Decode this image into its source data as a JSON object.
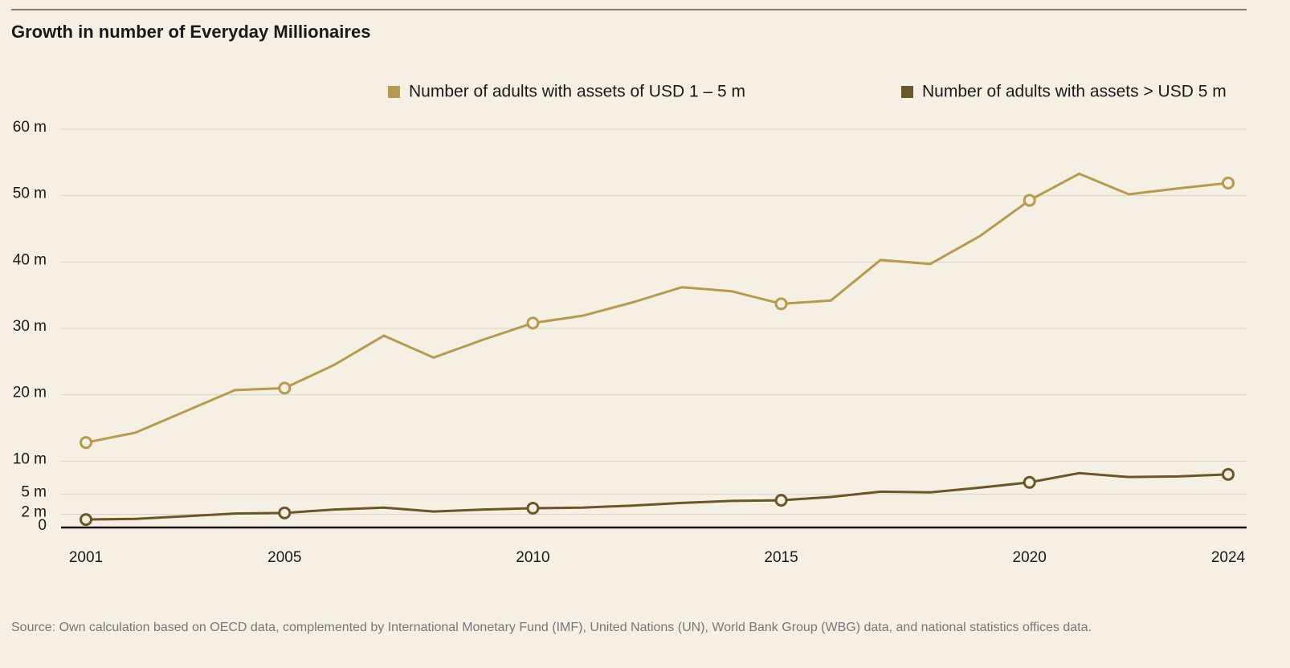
{
  "chart_data": {
    "type": "line",
    "title": "Growth in number of Everyday Millionaires",
    "x": [
      2001,
      2002,
      2003,
      2004,
      2005,
      2006,
      2007,
      2008,
      2009,
      2010,
      2011,
      2012,
      2013,
      2014,
      2015,
      2016,
      2017,
      2018,
      2019,
      2020,
      2021,
      2022,
      2023,
      2024
    ],
    "xlim": [
      2001,
      2024
    ],
    "xticks": [
      2001,
      2005,
      2010,
      2015,
      2020,
      2024
    ],
    "series": [
      {
        "name": "Number of adults with assets of USD 1 – 5 m",
        "color": "#b89a4f",
        "values": [
          12.8,
          14.3,
          17.5,
          20.7,
          21.0,
          24.5,
          28.9,
          25.6,
          28.3,
          30.8,
          31.9,
          33.9,
          36.2,
          35.6,
          33.7,
          34.2,
          40.3,
          39.7,
          43.9,
          49.3,
          53.3,
          50.2,
          51.1,
          51.9
        ]
      },
      {
        "name": "Number of adults with assets > USD 5 m",
        "color": "#6b5628",
        "values": [
          1.2,
          1.3,
          1.7,
          2.1,
          2.2,
          2.7,
          3.0,
          2.4,
          2.7,
          2.9,
          3.0,
          3.3,
          3.7,
          4.0,
          4.1,
          4.6,
          5.4,
          5.3,
          6.0,
          6.8,
          8.2,
          7.6,
          7.7,
          8.0
        ]
      }
    ],
    "ylim": [
      0,
      60
    ],
    "yticks": [
      0,
      {
        "value": 2,
        "label": "2 m"
      },
      {
        "value": 5,
        "label": "5 m"
      },
      {
        "value": 10,
        "label": "10 m"
      },
      {
        "value": 20,
        "label": "20 m"
      },
      {
        "value": 30,
        "label": "30 m"
      },
      {
        "value": 40,
        "label": "40 m"
      },
      {
        "value": 50,
        "label": "50 m"
      },
      {
        "value": 60,
        "label": "60 m"
      }
    ],
    "grid": true,
    "legend": "top",
    "source": "Source: Own calculation based on OECD data, complemented by International Monetary Fund (IMF), United Nations (UN), World Bank Group (WBG) data, and national statistics offices data."
  }
}
